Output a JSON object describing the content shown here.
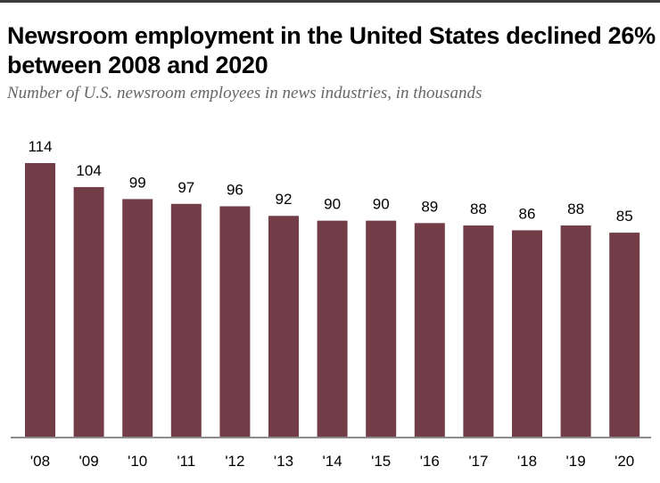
{
  "header": {
    "title": "Newsroom employment in the United States declined 26% between 2008 and 2020",
    "subtitle": "Number of U.S. newsroom employees in news industries, in thousands"
  },
  "colors": {
    "bar": "#733d47",
    "axis": "#8c8c8c",
    "label": "#000000"
  },
  "chart_data": {
    "type": "bar",
    "title": "Newsroom employment in the United States declined 26% between 2008 and 2020",
    "subtitle": "Number of U.S. newsroom employees in news industries, in thousands",
    "xlabel": "",
    "ylabel": "",
    "categories": [
      "'08",
      "'09",
      "'10",
      "'11",
      "'12",
      "'13",
      "'14",
      "'15",
      "'16",
      "'17",
      "'18",
      "'19",
      "'20"
    ],
    "values": [
      114,
      104,
      99,
      97,
      96,
      92,
      90,
      90,
      89,
      88,
      86,
      88,
      85
    ],
    "ylim": [
      0,
      114
    ],
    "grid": false,
    "legend": "none",
    "data_labels": true
  }
}
